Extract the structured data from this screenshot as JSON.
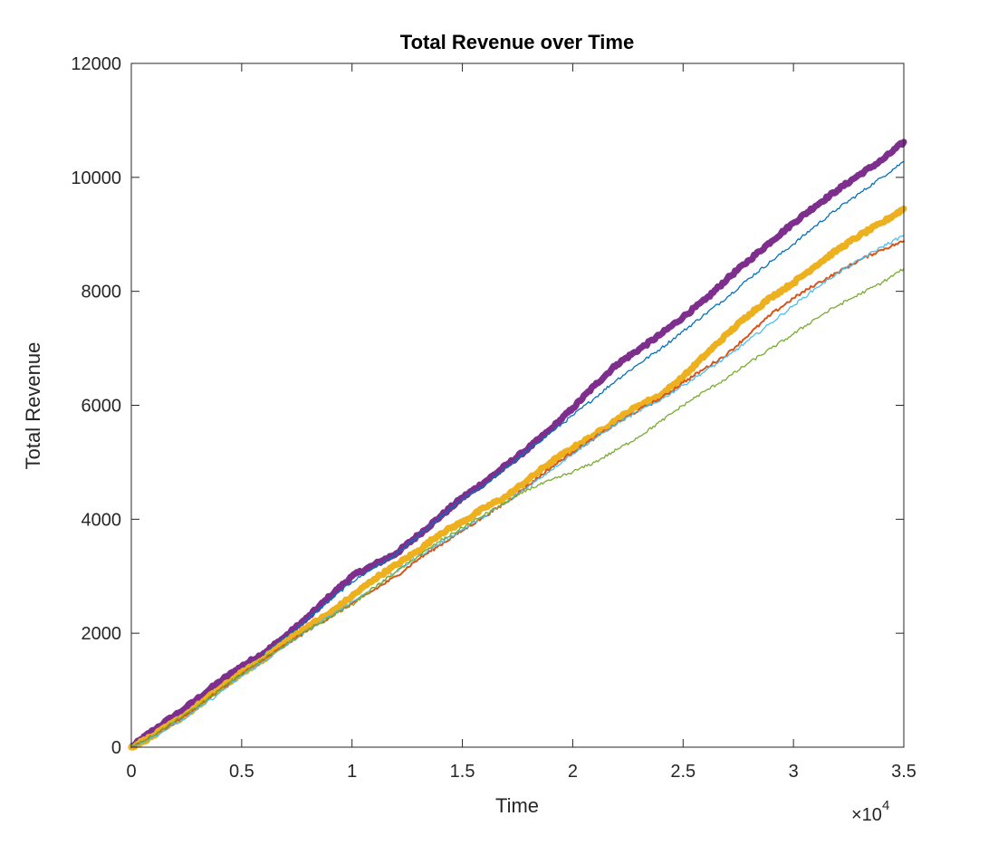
{
  "chart_data": {
    "type": "line",
    "title": "Total Revenue over Time",
    "xlabel": "Time",
    "ylabel": "Total Revenue",
    "x_multiplier_label": {
      "base": "×10",
      "exponent": "4"
    },
    "xlim": [
      0,
      35000
    ],
    "ylim": [
      0,
      12000
    ],
    "xticks": [
      0,
      5000,
      10000,
      15000,
      20000,
      25000,
      30000,
      35000
    ],
    "xtick_labels": [
      "0",
      "0.5",
      "1",
      "1.5",
      "2",
      "2.5",
      "3",
      "3.5"
    ],
    "yticks": [
      0,
      2000,
      4000,
      6000,
      8000,
      10000,
      12000
    ],
    "ytick_labels": [
      "0",
      "2000",
      "4000",
      "6000",
      "8000",
      "10000",
      "12000"
    ],
    "grid": false,
    "legend": "none",
    "series": [
      {
        "color": "#7E2F8E",
        "line_width": 7,
        "points": [
          [
            0,
            0
          ],
          [
            1000,
            300
          ],
          [
            2500,
            700
          ],
          [
            4000,
            1150
          ],
          [
            5000,
            1420
          ],
          [
            6000,
            1650
          ],
          [
            7000,
            1950
          ],
          [
            8000,
            2280
          ],
          [
            9000,
            2650
          ],
          [
            10000,
            3000
          ],
          [
            11000,
            3200
          ],
          [
            12000,
            3400
          ],
          [
            13000,
            3720
          ],
          [
            14000,
            4050
          ],
          [
            15000,
            4380
          ],
          [
            16000,
            4650
          ],
          [
            17000,
            4950
          ],
          [
            18000,
            5250
          ],
          [
            19000,
            5580
          ],
          [
            20000,
            5950
          ],
          [
            21000,
            6350
          ],
          [
            22000,
            6720
          ],
          [
            23000,
            6980
          ],
          [
            24000,
            7250
          ],
          [
            25000,
            7550
          ],
          [
            26000,
            7850
          ],
          [
            27000,
            8220
          ],
          [
            28000,
            8550
          ],
          [
            29000,
            8880
          ],
          [
            30000,
            9200
          ],
          [
            31000,
            9500
          ],
          [
            32000,
            9780
          ],
          [
            33000,
            10050
          ],
          [
            34000,
            10300
          ],
          [
            35000,
            10620
          ]
        ]
      },
      {
        "color": "#0072BD",
        "line_width": 1.3,
        "points": [
          [
            0,
            0
          ],
          [
            1000,
            250
          ],
          [
            2500,
            600
          ],
          [
            4000,
            1050
          ],
          [
            5000,
            1350
          ],
          [
            6000,
            1620
          ],
          [
            7000,
            1930
          ],
          [
            8000,
            2250
          ],
          [
            9000,
            2580
          ],
          [
            10000,
            2900
          ],
          [
            11000,
            3150
          ],
          [
            12000,
            3380
          ],
          [
            13000,
            3700
          ],
          [
            14000,
            4030
          ],
          [
            15000,
            4350
          ],
          [
            16000,
            4600
          ],
          [
            17000,
            4900
          ],
          [
            18000,
            5220
          ],
          [
            19000,
            5520
          ],
          [
            20000,
            5820
          ],
          [
            21000,
            6130
          ],
          [
            22000,
            6450
          ],
          [
            23000,
            6730
          ],
          [
            24000,
            7000
          ],
          [
            25000,
            7300
          ],
          [
            26000,
            7600
          ],
          [
            27000,
            7900
          ],
          [
            28000,
            8230
          ],
          [
            29000,
            8530
          ],
          [
            30000,
            8830
          ],
          [
            31000,
            9150
          ],
          [
            32000,
            9450
          ],
          [
            33000,
            9720
          ],
          [
            34000,
            10000
          ],
          [
            35000,
            10280
          ]
        ]
      },
      {
        "color": "#EDB120",
        "line_width": 7,
        "points": [
          [
            0,
            0
          ],
          [
            1000,
            200
          ],
          [
            2500,
            580
          ],
          [
            4000,
            1020
          ],
          [
            5000,
            1300
          ],
          [
            6000,
            1550
          ],
          [
            7000,
            1850
          ],
          [
            8000,
            2120
          ],
          [
            9000,
            2350
          ],
          [
            10000,
            2650
          ],
          [
            11000,
            2950
          ],
          [
            12000,
            3200
          ],
          [
            13000,
            3450
          ],
          [
            14000,
            3750
          ],
          [
            15000,
            3950
          ],
          [
            16000,
            4200
          ],
          [
            17000,
            4400
          ],
          [
            18000,
            4700
          ],
          [
            19000,
            5000
          ],
          [
            20000,
            5250
          ],
          [
            21000,
            5480
          ],
          [
            22000,
            5750
          ],
          [
            23000,
            6000
          ],
          [
            24000,
            6180
          ],
          [
            25000,
            6500
          ],
          [
            26000,
            6880
          ],
          [
            27000,
            7250
          ],
          [
            28000,
            7600
          ],
          [
            29000,
            7900
          ],
          [
            30000,
            8150
          ],
          [
            31000,
            8450
          ],
          [
            32000,
            8730
          ],
          [
            33000,
            8980
          ],
          [
            34000,
            9200
          ],
          [
            35000,
            9450
          ]
        ]
      },
      {
        "color": "#D95319",
        "line_width": 2,
        "points": [
          [
            0,
            0
          ],
          [
            1000,
            200
          ],
          [
            2500,
            560
          ],
          [
            4000,
            1000
          ],
          [
            5000,
            1280
          ],
          [
            6000,
            1530
          ],
          [
            7000,
            1800
          ],
          [
            8000,
            2050
          ],
          [
            9000,
            2280
          ],
          [
            10000,
            2520
          ],
          [
            11000,
            2760
          ],
          [
            12000,
            3000
          ],
          [
            13000,
            3300
          ],
          [
            14000,
            3550
          ],
          [
            15000,
            3800
          ],
          [
            16000,
            4050
          ],
          [
            17000,
            4300
          ],
          [
            18000,
            4600
          ],
          [
            19000,
            4900
          ],
          [
            20000,
            5180
          ],
          [
            21000,
            5430
          ],
          [
            22000,
            5680
          ],
          [
            23000,
            5920
          ],
          [
            24000,
            6120
          ],
          [
            25000,
            6400
          ],
          [
            26000,
            6650
          ],
          [
            27000,
            6900
          ],
          [
            28000,
            7250
          ],
          [
            29000,
            7600
          ],
          [
            30000,
            7880
          ],
          [
            31000,
            8120
          ],
          [
            32000,
            8330
          ],
          [
            33000,
            8550
          ],
          [
            34000,
            8730
          ],
          [
            35000,
            8880
          ]
        ]
      },
      {
        "color": "#4DBEEE",
        "line_width": 1.3,
        "points": [
          [
            0,
            0
          ],
          [
            1000,
            180
          ],
          [
            2500,
            520
          ],
          [
            4000,
            950
          ],
          [
            5000,
            1250
          ],
          [
            6000,
            1500
          ],
          [
            7000,
            1780
          ],
          [
            8000,
            2050
          ],
          [
            9000,
            2300
          ],
          [
            10000,
            2550
          ],
          [
            11000,
            2800
          ],
          [
            12000,
            3080
          ],
          [
            13000,
            3350
          ],
          [
            14000,
            3580
          ],
          [
            15000,
            3820
          ],
          [
            16000,
            4050
          ],
          [
            17000,
            4300
          ],
          [
            18000,
            4580
          ],
          [
            19000,
            4860
          ],
          [
            20000,
            5150
          ],
          [
            21000,
            5420
          ],
          [
            22000,
            5680
          ],
          [
            23000,
            5900
          ],
          [
            24000,
            6100
          ],
          [
            25000,
            6350
          ],
          [
            26000,
            6600
          ],
          [
            27000,
            6850
          ],
          [
            28000,
            7150
          ],
          [
            29000,
            7450
          ],
          [
            30000,
            7750
          ],
          [
            31000,
            8050
          ],
          [
            32000,
            8320
          ],
          [
            33000,
            8550
          ],
          [
            34000,
            8780
          ],
          [
            35000,
            8980
          ]
        ]
      },
      {
        "color": "#77AC30",
        "line_width": 1.3,
        "points": [
          [
            0,
            0
          ],
          [
            1000,
            200
          ],
          [
            2500,
            600
          ],
          [
            4000,
            1000
          ],
          [
            5000,
            1300
          ],
          [
            6000,
            1550
          ],
          [
            7000,
            1800
          ],
          [
            8000,
            2050
          ],
          [
            9000,
            2280
          ],
          [
            10000,
            2500
          ],
          [
            11000,
            2800
          ],
          [
            12000,
            3080
          ],
          [
            13000,
            3350
          ],
          [
            14000,
            3620
          ],
          [
            15000,
            3850
          ],
          [
            16000,
            4080
          ],
          [
            17000,
            4300
          ],
          [
            18000,
            4530
          ],
          [
            19000,
            4680
          ],
          [
            20000,
            4830
          ],
          [
            21000,
            5000
          ],
          [
            22000,
            5220
          ],
          [
            23000,
            5450
          ],
          [
            24000,
            5720
          ],
          [
            25000,
            6000
          ],
          [
            26000,
            6250
          ],
          [
            27000,
            6480
          ],
          [
            28000,
            6750
          ],
          [
            29000,
            7000
          ],
          [
            30000,
            7250
          ],
          [
            31000,
            7520
          ],
          [
            32000,
            7750
          ],
          [
            33000,
            7950
          ],
          [
            34000,
            8150
          ],
          [
            35000,
            8400
          ]
        ]
      }
    ]
  }
}
